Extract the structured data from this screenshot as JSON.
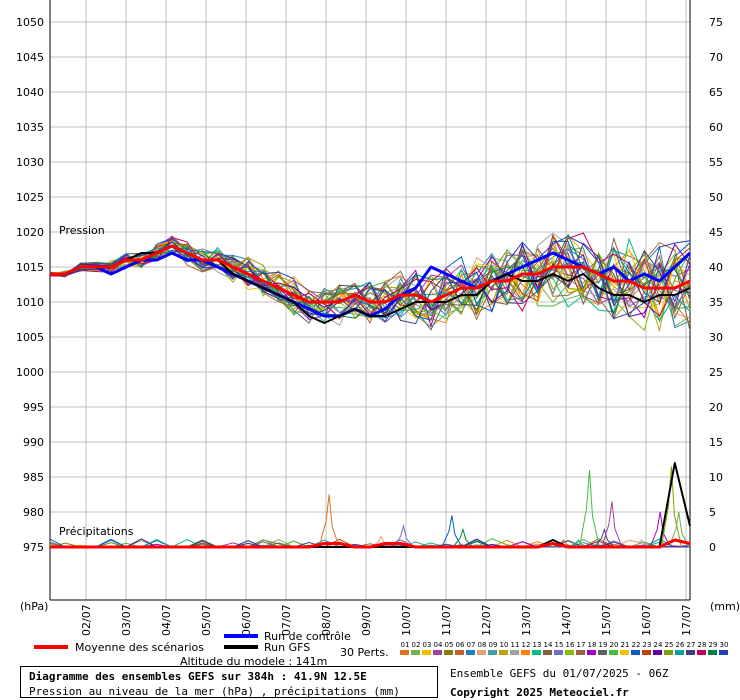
{
  "chart_data": {
    "type": "line",
    "title": "Diagramme des ensembles GEFS sur 384h : 41.9N 12.5E",
    "subtitle": "Pression au niveau de la mer (hPa) , précipitations (mm)",
    "left_axis_unit": "(hPa)",
    "right_axis_unit": "(mm)",
    "pressure_label": "Pression",
    "precip_label": "Précipitations",
    "left_ticks": [
      1050,
      1045,
      1040,
      1035,
      1030,
      1025,
      1020,
      1015,
      1010,
      1005,
      1000,
      995,
      990,
      985,
      980,
      975
    ],
    "right_ticks": [
      75,
      70,
      65,
      60,
      55,
      50,
      45,
      40,
      35,
      30,
      25,
      20,
      15,
      10,
      5,
      0
    ],
    "x_labels": [
      "02/07",
      "03/07",
      "04/07",
      "05/07",
      "06/07",
      "07/07",
      "08/07",
      "09/07",
      "10/07",
      "11/07",
      "12/07",
      "13/07",
      "14/07",
      "15/07",
      "16/07",
      "17/07"
    ],
    "pressure_range": [
      975,
      1050
    ],
    "precip_range": [
      0,
      75
    ],
    "mean_pressure": [
      1014,
      1014,
      1015,
      1015,
      1015,
      1016,
      1016,
      1017,
      1018,
      1017,
      1016,
      1016,
      1015,
      1014,
      1013,
      1012,
      1011,
      1010,
      1010,
      1010,
      1011,
      1010,
      1010,
      1011,
      1011,
      1010,
      1011,
      1012,
      1012,
      1013,
      1013,
      1014,
      1014,
      1015,
      1015,
      1015,
      1014,
      1013,
      1013,
      1012,
      1012,
      1012,
      1013
    ],
    "control_pressure": [
      1014,
      1014,
      1015,
      1015,
      1014,
      1015,
      1016,
      1016,
      1017,
      1016,
      1016,
      1015,
      1014,
      1013,
      1012,
      1011,
      1010,
      1009,
      1008,
      1008,
      1009,
      1008,
      1009,
      1011,
      1012,
      1015,
      1014,
      1013,
      1012,
      1013,
      1014,
      1015,
      1016,
      1017,
      1016,
      1015,
      1014,
      1015,
      1013,
      1014,
      1013,
      1015,
      1017
    ],
    "gfs_pressure": [
      1014,
      1014,
      1015,
      1015,
      1015,
      1016,
      1017,
      1017,
      1018,
      1017,
      1016,
      1016,
      1014,
      1013,
      1012,
      1011,
      1010,
      1008,
      1007,
      1008,
      1009,
      1008,
      1008,
      1009,
      1010,
      1010,
      1010,
      1011,
      1011,
      1013,
      1014,
      1013,
      1013,
      1014,
      1013,
      1014,
      1012,
      1011,
      1011,
      1010,
      1011,
      1011,
      1012
    ],
    "precip_gfs": [
      0,
      0,
      0,
      0,
      0,
      0,
      0,
      0,
      0,
      0,
      0,
      0,
      0,
      0,
      0,
      0,
      0,
      0,
      0,
      0,
      0,
      0,
      0,
      0,
      0,
      0,
      0,
      0,
      0,
      0,
      0,
      0,
      0,
      1,
      0,
      0,
      0,
      0,
      0,
      0,
      0,
      12,
      3
    ],
    "precip_mean": [
      0,
      0,
      0,
      0,
      0,
      0,
      0,
      0,
      0,
      0,
      0,
      0,
      0,
      0,
      0,
      0,
      0,
      0,
      0.5,
      0.5,
      0,
      0,
      0.5,
      0.5,
      0,
      0,
      0,
      0,
      0,
      0,
      0,
      0,
      0,
      0.5,
      0,
      0,
      0,
      0,
      0,
      0,
      0,
      1,
      0.5
    ],
    "precip_peaks": [
      {
        "x": 37.5,
        "value": 7.5
      },
      {
        "x": 44.5,
        "value": 1.5
      },
      {
        "x": 47.5,
        "value": 3
      },
      {
        "x": 54,
        "value": 4.5
      },
      {
        "x": 55.5,
        "value": 2.5
      },
      {
        "x": 69,
        "value": 1
      },
      {
        "x": 71,
        "value": 1
      },
      {
        "x": 72.5,
        "value": 11
      },
      {
        "x": 74.5,
        "value": 2.5
      },
      {
        "x": 75.5,
        "value": 6.5
      },
      {
        "x": 79.5,
        "value": 1
      },
      {
        "x": 82,
        "value": 5
      },
      {
        "x": 83.5,
        "value": 11.5
      },
      {
        "x": 84.5,
        "value": 5
      }
    ]
  },
  "legend": {
    "mean_label": "Moyenne des scénarios",
    "control_label": "Run de contrôle",
    "gfs_label": "Run GFS",
    "perts_label": "30 Perts.",
    "mean_color": "#ff0000",
    "control_color": "#0000ff",
    "gfs_color": "#000000",
    "pert_numbers": [
      "01",
      "02",
      "03",
      "04",
      "05",
      "06",
      "07",
      "08",
      "09",
      "10",
      "11",
      "12",
      "13",
      "14",
      "15",
      "16",
      "17",
      "18",
      "19",
      "20",
      "21",
      "22",
      "23",
      "24",
      "25",
      "26",
      "27",
      "28",
      "29",
      "30"
    ],
    "pert_colors": [
      "#e07020",
      "#70b050",
      "#f0c000",
      "#a040a0",
      "#808000",
      "#c06030",
      "#2080c0",
      "#e0a070",
      "#40a0a0",
      "#c0a000",
      "#a0a0a0",
      "#ff8000",
      "#00c080",
      "#806040",
      "#7070c0",
      "#80c000",
      "#a06040",
      "#a000c0",
      "#606060",
      "#40c040",
      "#ffc000",
      "#0060c0",
      "#c04000",
      "#6000a0",
      "#80a000",
      "#00a0a0",
      "#404080",
      "#c00060",
      "#008040",
      "#2040c0"
    ]
  },
  "info": {
    "altitude": "Altitude du modele : 141m",
    "title": "Diagramme des ensembles GEFS sur 384h : 41.9N 12.5E",
    "subtitle": "Pression au niveau de la mer (hPa) , précipitations (mm)",
    "run": "Ensemble GEFS du 01/07/2025 - 06Z",
    "copyright": "Copyright 2025 Meteociel.fr"
  }
}
